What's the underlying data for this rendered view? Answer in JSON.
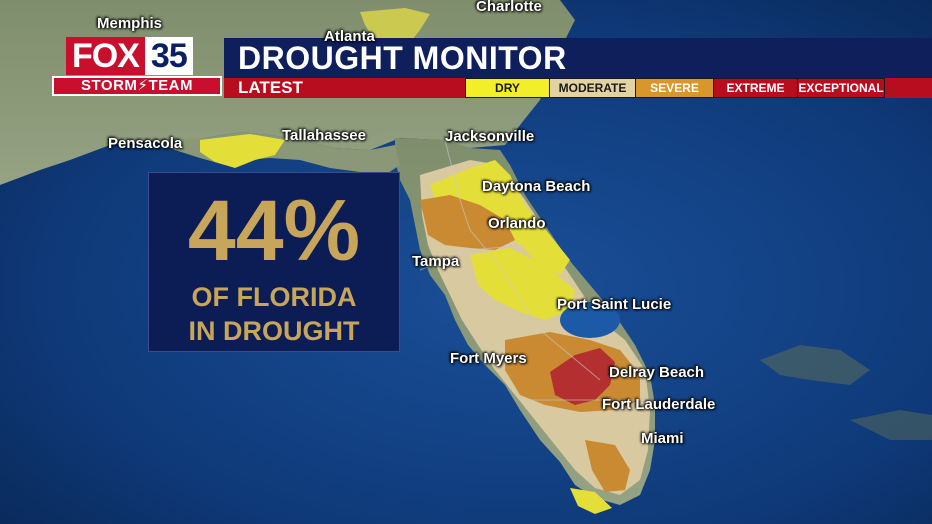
{
  "brand": {
    "station_name": "FOX",
    "station_number": "35",
    "team": "STORM⚡TEAM"
  },
  "header": {
    "title": "DROUGHT MONITOR",
    "subtitle": "LATEST"
  },
  "legend": [
    {
      "label": "DRY",
      "bg": "#f2ee2a",
      "fg": "#1a1a1a"
    },
    {
      "label": "MODERATE",
      "bg": "#e3d2a2",
      "fg": "#1a1a1a"
    },
    {
      "label": "SEVERE",
      "bg": "#d8962c",
      "fg": "#ffffff"
    },
    {
      "label": "EXTREME",
      "bg": "#b80d1f",
      "fg": "#ffffff"
    },
    {
      "label": "EXCEPTIONAL",
      "bg": "#b80d1f",
      "fg": "#ffffff"
    }
  ],
  "info": {
    "percent": "44%",
    "line1": "OF FLORIDA",
    "line2": "IN DROUGHT"
  },
  "cities": [
    {
      "name": "Memphis"
    },
    {
      "name": "Atlanta"
    },
    {
      "name": "Charlotte"
    },
    {
      "name": "Pensacola"
    },
    {
      "name": "Tallahassee"
    },
    {
      "name": "Jacksonville"
    },
    {
      "name": "Daytona Beach"
    },
    {
      "name": "Orlando"
    },
    {
      "name": "Tampa"
    },
    {
      "name": "Port Saint Lucie"
    },
    {
      "name": "Fort Myers"
    },
    {
      "name": "Delray Beach"
    },
    {
      "name": "Fort Lauderdale"
    },
    {
      "name": "Miami"
    }
  ],
  "colors": {
    "ocean": "#0d3a78",
    "land": "#8b9a78",
    "dry": "#e4df38",
    "moderate": "#d9c9a0",
    "severe": "#c98a32",
    "extreme": "#b43030",
    "header_blue": "#0e1f5c",
    "header_red": "#b80d1f",
    "panel_gold": "#c7a55a"
  }
}
